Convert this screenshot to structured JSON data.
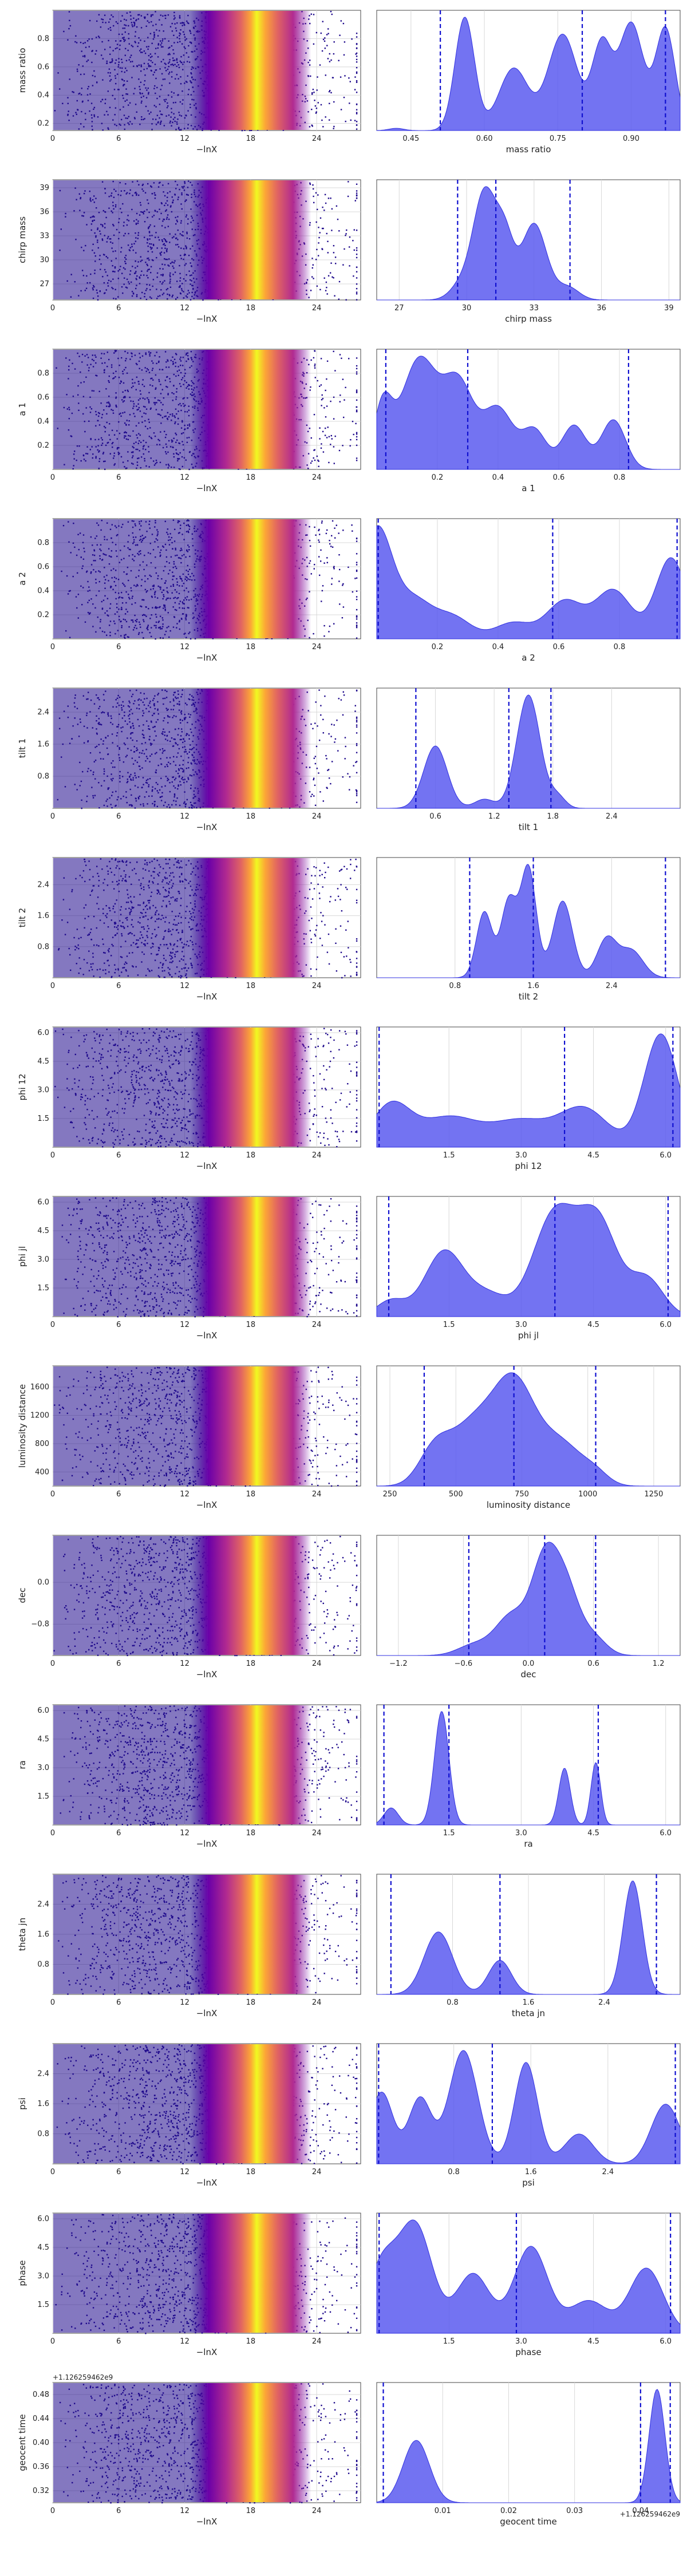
{
  "chart_data": [
    {
      "type": "scatter",
      "xlabel": "−lnX",
      "ylabel": "mass ratio",
      "xlim": [
        0,
        28
      ],
      "ylim": [
        0.15,
        1.0
      ],
      "xticks": [
        0,
        6,
        12,
        18,
        24
      ],
      "yticks": [
        "0.2",
        "0.4",
        "0.6",
        "0.8"
      ],
      "ytick_values": [
        0.2,
        0.4,
        0.6,
        0.8
      ],
      "colormap": "plasma",
      "point_color": "#1f0a8c",
      "highlight_x": 18
    },
    {
      "type": "area",
      "xlabel": "mass ratio",
      "xlim": [
        0.38,
        1.0
      ],
      "xticks": [
        "0.45",
        "0.60",
        "0.75",
        "0.90"
      ],
      "xtick_values": [
        0.45,
        0.6,
        0.75,
        0.9
      ],
      "fill": "#5b5bf0",
      "quantiles": [
        0.51,
        0.8,
        0.97
      ],
      "peaks": [
        [
          0.42,
          0.02,
          0.015
        ],
        [
          0.56,
          1.0,
          0.02
        ],
        [
          0.66,
          0.55,
          0.03
        ],
        [
          0.76,
          0.85,
          0.03
        ],
        [
          0.84,
          0.75,
          0.02
        ],
        [
          0.9,
          0.95,
          0.025
        ],
        [
          0.97,
          0.9,
          0.02
        ]
      ]
    },
    {
      "type": "scatter",
      "xlabel": "−lnX",
      "ylabel": "chirp mass",
      "xlim": [
        0,
        28
      ],
      "ylim": [
        25,
        40
      ],
      "xticks": [
        0,
        6,
        12,
        18,
        24
      ],
      "yticks": [
        "27",
        "30",
        "33",
        "36",
        "39"
      ],
      "ytick_values": [
        27,
        30,
        33,
        36,
        39
      ],
      "colormap": "plasma",
      "point_color": "#1f0a8c",
      "highlight_x": 18
    },
    {
      "type": "area",
      "xlabel": "chirp mass",
      "xlim": [
        26,
        39.5
      ],
      "xticks": [
        "27",
        "30",
        "33",
        "36",
        "39"
      ],
      "xtick_values": [
        27,
        30,
        33,
        36,
        39
      ],
      "fill": "#5b5bf0",
      "quantiles": [
        29.6,
        31.3,
        34.6
      ],
      "peaks": [
        [
          29.8,
          0.15,
          0.5
        ],
        [
          30.8,
          1.0,
          0.5
        ],
        [
          31.7,
          0.55,
          0.4
        ],
        [
          33.0,
          0.72,
          0.55
        ],
        [
          34.5,
          0.12,
          0.5
        ]
      ]
    },
    {
      "type": "scatter",
      "xlabel": "−lnX",
      "ylabel": "a 1",
      "xlim": [
        0,
        28
      ],
      "ylim": [
        0,
        1
      ],
      "xticks": [
        0,
        6,
        12,
        18,
        24
      ],
      "yticks": [
        "0.2",
        "0.4",
        "0.6",
        "0.8"
      ],
      "ytick_values": [
        0.2,
        0.4,
        0.6,
        0.8
      ],
      "colormap": "plasma",
      "point_color": "#1f0a8c",
      "highlight_x": 18
    },
    {
      "type": "area",
      "xlabel": "a 1",
      "xlim": [
        0,
        1
      ],
      "xticks": [
        "0.2",
        "0.4",
        "0.6",
        "0.8"
      ],
      "xtick_values": [
        0.2,
        0.4,
        0.6,
        0.8
      ],
      "fill": "#5b5bf0",
      "quantiles": [
        0.03,
        0.3,
        0.83
      ],
      "peaks": [
        [
          0.02,
          0.55,
          0.03
        ],
        [
          0.14,
          1.0,
          0.06
        ],
        [
          0.27,
          0.75,
          0.05
        ],
        [
          0.4,
          0.55,
          0.05
        ],
        [
          0.52,
          0.35,
          0.04
        ],
        [
          0.65,
          0.4,
          0.04
        ],
        [
          0.78,
          0.45,
          0.04
        ]
      ]
    },
    {
      "type": "scatter",
      "xlabel": "−lnX",
      "ylabel": "a 2",
      "xlim": [
        0,
        28
      ],
      "ylim": [
        0,
        1
      ],
      "xticks": [
        0,
        6,
        12,
        18,
        24
      ],
      "yticks": [
        "0.2",
        "0.4",
        "0.6",
        "0.8"
      ],
      "ytick_values": [
        0.2,
        0.4,
        0.6,
        0.8
      ],
      "colormap": "plasma",
      "point_color": "#1f0a8c",
      "highlight_x": 18
    },
    {
      "type": "area",
      "xlabel": "a 2",
      "xlim": [
        0,
        1
      ],
      "xticks": [
        "0.2",
        "0.4",
        "0.6",
        "0.8"
      ],
      "xtick_values": [
        0.2,
        0.4,
        0.6,
        0.8
      ],
      "fill": "#5b5bf0",
      "quantiles": [
        0.005,
        0.58,
        0.99
      ],
      "peaks": [
        [
          0.0,
          1.0,
          0.05
        ],
        [
          0.12,
          0.35,
          0.06
        ],
        [
          0.25,
          0.2,
          0.06
        ],
        [
          0.45,
          0.15,
          0.06
        ],
        [
          0.62,
          0.35,
          0.06
        ],
        [
          0.78,
          0.45,
          0.06
        ],
        [
          0.97,
          0.75,
          0.05
        ]
      ]
    },
    {
      "type": "scatter",
      "xlabel": "−lnX",
      "ylabel": "tilt 1",
      "xlim": [
        0,
        28
      ],
      "ylim": [
        0,
        3
      ],
      "xticks": [
        0,
        6,
        12,
        18,
        24
      ],
      "yticks": [
        "0.8",
        "1.6",
        "2.4"
      ],
      "ytick_values": [
        0.8,
        1.6,
        2.4
      ],
      "colormap": "plasma",
      "point_color": "#1f0a8c",
      "highlight_x": 18
    },
    {
      "type": "area",
      "xlabel": "tilt 1",
      "xlim": [
        0,
        3.1
      ],
      "xticks": [
        "0.6",
        "1.2",
        "1.8",
        "2.4"
      ],
      "xtick_values": [
        0.6,
        1.2,
        1.8,
        2.4
      ],
      "fill": "#5b5bf0",
      "quantiles": [
        0.4,
        1.35,
        1.78
      ],
      "peaks": [
        [
          0.6,
          0.55,
          0.12
        ],
        [
          1.1,
          0.08,
          0.1
        ],
        [
          1.55,
          1.0,
          0.12
        ],
        [
          1.85,
          0.1,
          0.08
        ]
      ]
    },
    {
      "type": "scatter",
      "xlabel": "−lnX",
      "ylabel": "tilt 2",
      "xlim": [
        0,
        28
      ],
      "ylim": [
        0,
        3.1
      ],
      "xticks": [
        0,
        6,
        12,
        18,
        24
      ],
      "yticks": [
        "0.8",
        "1.6",
        "2.4"
      ],
      "ytick_values": [
        0.8,
        1.6,
        2.4
      ],
      "colormap": "plasma",
      "point_color": "#1f0a8c",
      "highlight_x": 18
    },
    {
      "type": "area",
      "xlabel": "tilt 2",
      "xlim": [
        0,
        3.1
      ],
      "xticks": [
        "0.8",
        "1.6",
        "2.4"
      ],
      "xtick_values": [
        0.8,
        1.6,
        2.4
      ],
      "fill": "#5b5bf0",
      "quantiles": [
        0.95,
        1.6,
        2.95
      ],
      "peaks": [
        [
          1.1,
          0.6,
          0.08
        ],
        [
          1.35,
          0.7,
          0.08
        ],
        [
          1.55,
          1.0,
          0.08
        ],
        [
          1.9,
          0.7,
          0.1
        ],
        [
          2.35,
          0.35,
          0.1
        ],
        [
          2.6,
          0.25,
          0.12
        ]
      ]
    },
    {
      "type": "scatter",
      "xlabel": "−lnX",
      "ylabel": "phi 12",
      "xlim": [
        0,
        28
      ],
      "ylim": [
        0,
        6.3
      ],
      "xticks": [
        0,
        6,
        12,
        18,
        24
      ],
      "yticks": [
        "1.5",
        "3.0",
        "4.5",
        "6.0"
      ],
      "ytick_values": [
        1.5,
        3.0,
        4.5,
        6.0
      ],
      "colormap": "plasma",
      "point_color": "#1f0a8c",
      "highlight_x": 18
    },
    {
      "type": "area",
      "xlabel": "phi 12",
      "xlim": [
        0,
        6.3
      ],
      "xticks": [
        "1.5",
        "3.0",
        "4.5",
        "6.0"
      ],
      "xtick_values": [
        1.5,
        3.0,
        4.5,
        6.0
      ],
      "fill": "#5b5bf0",
      "quantiles": [
        0.05,
        3.9,
        6.15
      ],
      "peaks": [
        [
          0.3,
          0.35,
          0.4
        ],
        [
          1.5,
          0.25,
          0.6
        ],
        [
          3.0,
          0.22,
          0.6
        ],
        [
          4.3,
          0.32,
          0.5
        ],
        [
          5.9,
          0.95,
          0.35
        ]
      ]
    },
    {
      "type": "scatter",
      "xlabel": "−lnX",
      "ylabel": "phi jl",
      "xlim": [
        0,
        28
      ],
      "ylim": [
        0,
        6.3
      ],
      "xticks": [
        0,
        6,
        12,
        18,
        24
      ],
      "yticks": [
        "1.5",
        "3.0",
        "4.5",
        "6.0"
      ],
      "ytick_values": [
        1.5,
        3.0,
        4.5,
        6.0
      ],
      "colormap": "plasma",
      "point_color": "#1f0a8c",
      "highlight_x": 18
    },
    {
      "type": "area",
      "xlabel": "phi jl",
      "xlim": [
        0,
        6.3
      ],
      "xticks": [
        "1.5",
        "3.0",
        "4.5",
        "6.0"
      ],
      "xtick_values": [
        1.5,
        3.0,
        4.5,
        6.0
      ],
      "fill": "#5b5bf0",
      "quantiles": [
        0.25,
        3.7,
        6.05
      ],
      "peaks": [
        [
          0.3,
          0.15,
          0.3
        ],
        [
          1.4,
          0.6,
          0.4
        ],
        [
          2.3,
          0.2,
          0.4
        ],
        [
          3.7,
          0.95,
          0.45
        ],
        [
          4.6,
          0.85,
          0.4
        ],
        [
          5.6,
          0.35,
          0.35
        ]
      ]
    },
    {
      "type": "scatter",
      "xlabel": "−lnX",
      "ylabel": "luminosity distance",
      "xlim": [
        0,
        28
      ],
      "ylim": [
        200,
        1900
      ],
      "xticks": [
        0,
        6,
        12,
        18,
        24
      ],
      "yticks": [
        "400",
        "800",
        "1200",
        "1600"
      ],
      "ytick_values": [
        400,
        800,
        1200,
        1600
      ],
      "colormap": "plasma",
      "point_color": "#1f0a8c",
      "highlight_x": 18
    },
    {
      "type": "area",
      "xlabel": "luminosity distance",
      "xlim": [
        200,
        1350
      ],
      "xticks": [
        "250",
        "500",
        "750",
        "1000",
        "1250"
      ],
      "xtick_values": [
        250,
        500,
        750,
        1000,
        1250
      ],
      "fill": "#5b5bf0",
      "quantiles": [
        380,
        720,
        1030
      ],
      "peaks": [
        [
          420,
          0.35,
          60
        ],
        [
          560,
          0.55,
          80
        ],
        [
          720,
          1.0,
          80
        ],
        [
          900,
          0.4,
          80
        ],
        [
          1030,
          0.1,
          50
        ]
      ]
    },
    {
      "type": "scatter",
      "xlabel": "−lnX",
      "ylabel": "dec",
      "xlim": [
        0,
        28
      ],
      "ylim": [
        -1.4,
        0.9
      ],
      "xticks": [
        0,
        6,
        12,
        18,
        24
      ],
      "yticks": [
        "−0.8",
        "0.0"
      ],
      "ytick_values": [
        -0.8,
        0.0
      ],
      "colormap": "plasma",
      "point_color": "#1f0a8c",
      "highlight_x": 18
    },
    {
      "type": "area",
      "xlabel": "dec",
      "xlim": [
        -1.4,
        1.4
      ],
      "xticks": [
        "−1.2",
        "−0.6",
        "0.0",
        "0.6",
        "1.2"
      ],
      "xtick_values": [
        -1.2,
        -0.6,
        0.0,
        0.6,
        1.2
      ],
      "fill": "#5b5bf0",
      "quantiles": [
        -0.55,
        0.15,
        0.62
      ],
      "peaks": [
        [
          -0.5,
          0.12,
          0.15
        ],
        [
          -0.15,
          0.45,
          0.15
        ],
        [
          0.15,
          1.0,
          0.12
        ],
        [
          0.35,
          0.7,
          0.12
        ],
        [
          0.6,
          0.2,
          0.12
        ]
      ]
    },
    {
      "type": "scatter",
      "xlabel": "−lnX",
      "ylabel": "ra",
      "xlim": [
        0,
        28
      ],
      "ylim": [
        0,
        6.3
      ],
      "xticks": [
        0,
        6,
        12,
        18,
        24
      ],
      "yticks": [
        "1.5",
        "3.0",
        "4.5",
        "6.0"
      ],
      "ytick_values": [
        1.5,
        3.0,
        4.5,
        6.0
      ],
      "colormap": "plasma",
      "point_color": "#1f0a8c",
      "highlight_x": 18
    },
    {
      "type": "area",
      "xlabel": "ra",
      "xlim": [
        0,
        6.3
      ],
      "xticks": [
        "1.5",
        "3.0",
        "4.5",
        "6.0"
      ],
      "xtick_values": [
        1.5,
        3.0,
        4.5,
        6.0
      ],
      "fill": "#5b5bf0",
      "quantiles": [
        0.15,
        1.5,
        4.6
      ],
      "peaks": [
        [
          0.3,
          0.15,
          0.15
        ],
        [
          1.35,
          1.0,
          0.15
        ],
        [
          3.9,
          0.5,
          0.12
        ],
        [
          4.55,
          0.55,
          0.1
        ]
      ]
    },
    {
      "type": "scatter",
      "xlabel": "−lnX",
      "ylabel": "theta jn",
      "xlim": [
        0,
        28
      ],
      "ylim": [
        0,
        3.2
      ],
      "xticks": [
        0,
        6,
        12,
        18,
        24
      ],
      "yticks": [
        "0.8",
        "1.6",
        "2.4"
      ],
      "ytick_values": [
        0.8,
        1.6,
        2.4
      ],
      "colormap": "plasma",
      "point_color": "#1f0a8c",
      "highlight_x": 18
    },
    {
      "type": "area",
      "xlabel": "theta jn",
      "xlim": [
        0,
        3.2
      ],
      "xticks": [
        "0.8",
        "1.6",
        "2.4"
      ],
      "xtick_values": [
        0.8,
        1.6,
        2.4
      ],
      "fill": "#5b5bf0",
      "quantiles": [
        0.15,
        1.3,
        2.95
      ],
      "peaks": [
        [
          0.65,
          0.55,
          0.15
        ],
        [
          1.3,
          0.3,
          0.12
        ],
        [
          2.7,
          1.0,
          0.1
        ]
      ]
    },
    {
      "type": "scatter",
      "xlabel": "−lnX",
      "ylabel": "psi",
      "xlim": [
        0,
        28
      ],
      "ylim": [
        0,
        3.2
      ],
      "xticks": [
        0,
        6,
        12,
        18,
        24
      ],
      "yticks": [
        "0.8",
        "1.6",
        "2.4"
      ],
      "ytick_values": [
        0.8,
        1.6,
        2.4
      ],
      "colormap": "plasma",
      "point_color": "#1f0a8c",
      "highlight_x": 18
    },
    {
      "type": "area",
      "xlabel": "psi",
      "xlim": [
        0,
        3.15
      ],
      "xticks": [
        "0.8",
        "1.6",
        "2.4"
      ],
      "xtick_values": [
        0.8,
        1.6,
        2.4
      ],
      "fill": "#5b5bf0",
      "quantiles": [
        0.02,
        1.2,
        3.1
      ],
      "peaks": [
        [
          0.05,
          0.6,
          0.12
        ],
        [
          0.45,
          0.55,
          0.12
        ],
        [
          0.9,
          0.95,
          0.15
        ],
        [
          1.55,
          0.85,
          0.12
        ],
        [
          2.1,
          0.25,
          0.15
        ],
        [
          3.0,
          0.5,
          0.15
        ]
      ]
    },
    {
      "type": "scatter",
      "xlabel": "−lnX",
      "ylabel": "phase",
      "xlim": [
        0,
        28
      ],
      "ylim": [
        0,
        6.3
      ],
      "xticks": [
        0,
        6,
        12,
        18,
        24
      ],
      "yticks": [
        "1.5",
        "3.0",
        "4.5",
        "6.0"
      ],
      "ytick_values": [
        1.5,
        3.0,
        4.5,
        6.0
      ],
      "colormap": "plasma",
      "point_color": "#1f0a8c",
      "highlight_x": 18
    },
    {
      "type": "area",
      "xlabel": "phase",
      "xlim": [
        0,
        6.3
      ],
      "xticks": [
        "1.5",
        "3.0",
        "4.5",
        "6.0"
      ],
      "xtick_values": [
        1.5,
        3.0,
        4.5,
        6.0
      ],
      "fill": "#5b5bf0",
      "quantiles": [
        0.05,
        2.9,
        6.1
      ],
      "peaks": [
        [
          0.1,
          0.6,
          0.3
        ],
        [
          0.8,
          1.0,
          0.35
        ],
        [
          2.0,
          0.55,
          0.35
        ],
        [
          3.2,
          0.8,
          0.35
        ],
        [
          4.4,
          0.3,
          0.4
        ],
        [
          5.6,
          0.6,
          0.35
        ]
      ]
    },
    {
      "type": "scatter",
      "xlabel": "−lnX",
      "ylabel": "geocent time",
      "offset": "+1.126259462e9",
      "xlim": [
        0,
        28
      ],
      "ylim": [
        0.3,
        0.5
      ],
      "xticks": [
        0,
        6,
        12,
        18,
        24
      ],
      "yticks": [
        "0.32",
        "0.36",
        "0.40",
        "0.44",
        "0.48"
      ],
      "ytick_values": [
        0.32,
        0.36,
        0.4,
        0.44,
        0.48
      ],
      "colormap": "plasma",
      "point_color": "#1f0a8c",
      "highlight_x": 18
    },
    {
      "type": "area",
      "xlabel": "geocent time",
      "offset": "+1.126259462e9",
      "xlim": [
        0.0,
        0.046
      ],
      "xticks": [
        "0.01",
        "0.02",
        "0.03",
        "0.04"
      ],
      "xtick_values": [
        0.01,
        0.02,
        0.03,
        0.04
      ],
      "fill": "#5b5bf0",
      "quantiles": [
        0.001,
        0.04,
        0.0445
      ],
      "peaks": [
        [
          0.006,
          0.55,
          0.002
        ],
        [
          0.0425,
          1.0,
          0.0012
        ]
      ]
    }
  ]
}
